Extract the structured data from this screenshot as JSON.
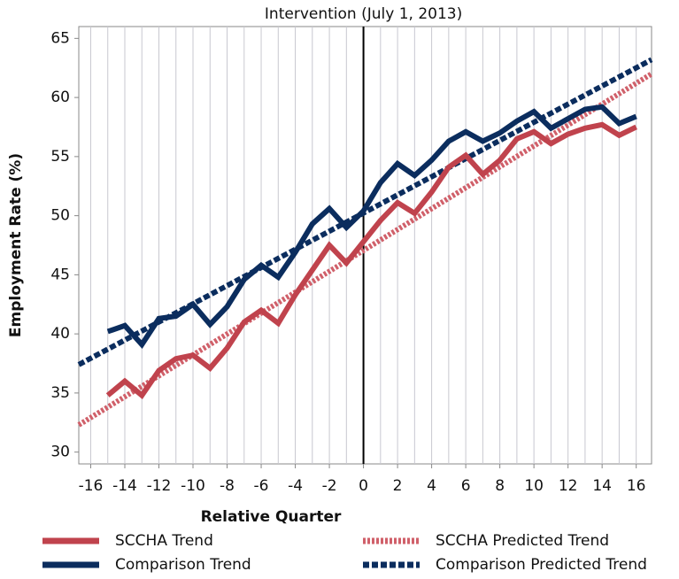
{
  "chart_data": {
    "type": "line",
    "xlabel": "Relative Quarter",
    "ylabel": "Employment Rate (%)",
    "annotations": [
      {
        "x": 0,
        "text": "Intervention (July 1, 2013)"
      }
    ],
    "x": [
      -15,
      -14,
      -13,
      -12,
      -11,
      -10,
      -9,
      -8,
      -7,
      -6,
      -5,
      -4,
      -3,
      -2,
      -1,
      0,
      1,
      2,
      3,
      4,
      5,
      6,
      7,
      8,
      9,
      10,
      11,
      12,
      13,
      14,
      15,
      16
    ],
    "series": [
      {
        "name": "SCCHA Trend",
        "color": "#c0434d",
        "style": "solid",
        "values": [
          34.8,
          36.0,
          34.8,
          36.9,
          37.9,
          38.2,
          37.1,
          38.8,
          41.0,
          42.0,
          40.9,
          43.3,
          45.4,
          47.5,
          46.0,
          47.8,
          49.6,
          51.1,
          50.2,
          52.0,
          54.1,
          55.1,
          53.5,
          54.7,
          56.5,
          57.1,
          56.1,
          56.9,
          57.4,
          57.7,
          56.8,
          57.5
        ]
      },
      {
        "name": "Comparison Trend",
        "color": "#0b2d5e",
        "style": "solid",
        "values": [
          40.2,
          40.7,
          39.1,
          41.3,
          41.5,
          42.5,
          40.8,
          42.3,
          44.6,
          45.8,
          44.8,
          46.9,
          49.3,
          50.6,
          49.0,
          50.4,
          52.8,
          54.4,
          53.4,
          54.7,
          56.3,
          57.1,
          56.3,
          57.0,
          58.0,
          58.8,
          57.4,
          58.2,
          59.0,
          59.2,
          57.8,
          58.4
        ]
      },
      {
        "name": "SCCHA Predicted Trend",
        "color": "#d0606a",
        "style": "dotted",
        "x": [
          -16.7,
          16.9
        ],
        "values": [
          32.3,
          62.0
        ]
      },
      {
        "name": "Comparison Predicted Trend",
        "color": "#0b2d5e",
        "style": "dashed",
        "x": [
          -16.7,
          16.9
        ],
        "values": [
          37.4,
          63.2
        ]
      }
    ],
    "xlim": [
      -16.7,
      16.9
    ],
    "ylim": [
      29,
      66
    ],
    "xticks": [
      -16,
      -14,
      -12,
      -10,
      -8,
      -6,
      -4,
      -2,
      0,
      2,
      4,
      6,
      8,
      10,
      12,
      14,
      16
    ],
    "yticks": [
      30,
      35,
      40,
      45,
      50,
      55,
      60,
      65
    ],
    "grid": "x",
    "grid_minor": true,
    "legend": "bottom"
  }
}
